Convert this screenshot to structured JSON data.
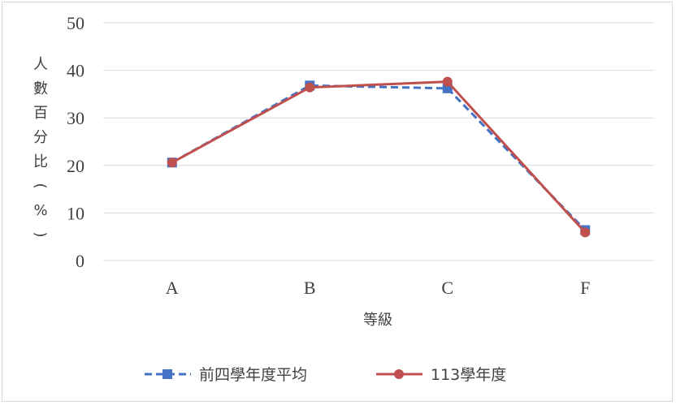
{
  "chart_data": {
    "type": "line",
    "title": "",
    "xlabel": "等級",
    "ylabel": "人數百分比(%)",
    "categories": [
      "A",
      "B",
      "C",
      "F"
    ],
    "ylim": [
      0,
      50
    ],
    "yticks": [
      0,
      10,
      20,
      30,
      40,
      50
    ],
    "grid": true,
    "legend_position": "bottom",
    "series": [
      {
        "name": "前四學年度平均",
        "values": [
          20.6,
          36.8,
          36.2,
          6.4
        ],
        "color": "#4472c4",
        "style": "dashed",
        "marker": "square"
      },
      {
        "name": "113學年度",
        "values": [
          20.6,
          36.4,
          37.6,
          5.9
        ],
        "color": "#c0504d",
        "style": "solid",
        "marker": "circle"
      }
    ]
  }
}
